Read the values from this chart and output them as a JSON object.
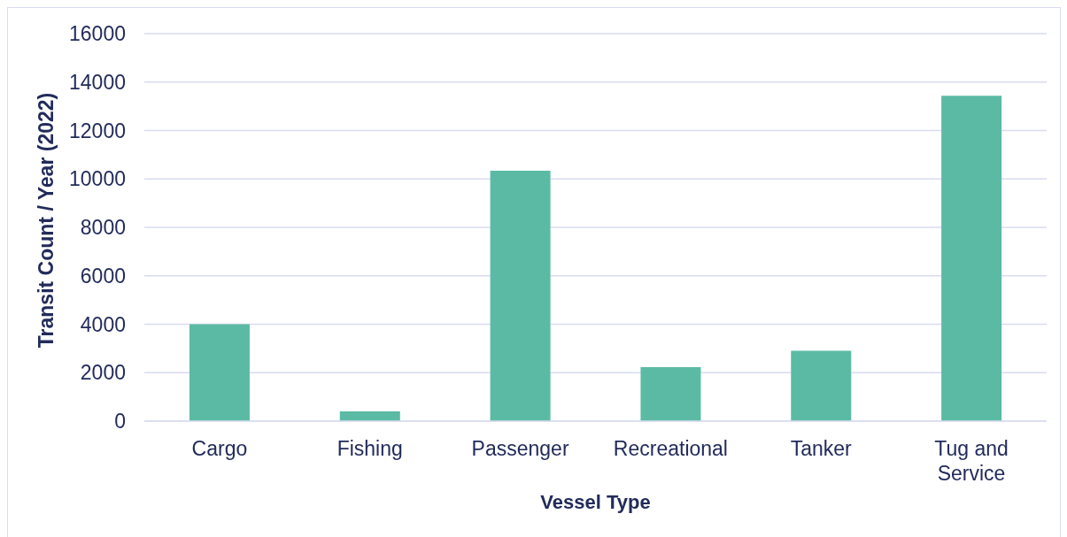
{
  "chart_data": {
    "type": "bar",
    "xlabel": "Vessel Type",
    "ylabel": "Transit Count / Year (2022)",
    "categories": [
      "Cargo",
      "Fishing",
      "Passenger",
      "Recreational",
      "Tanker",
      "Tug and Service"
    ],
    "values": [
      4000,
      400,
      10340,
      2230,
      2900,
      13430
    ],
    "color": "#5bbaa4",
    "ylim": [
      0,
      16000
    ],
    "yticks": [
      0,
      2000,
      4000,
      6000,
      8000,
      10000,
      12000,
      14000,
      16000
    ],
    "grid": "y"
  }
}
